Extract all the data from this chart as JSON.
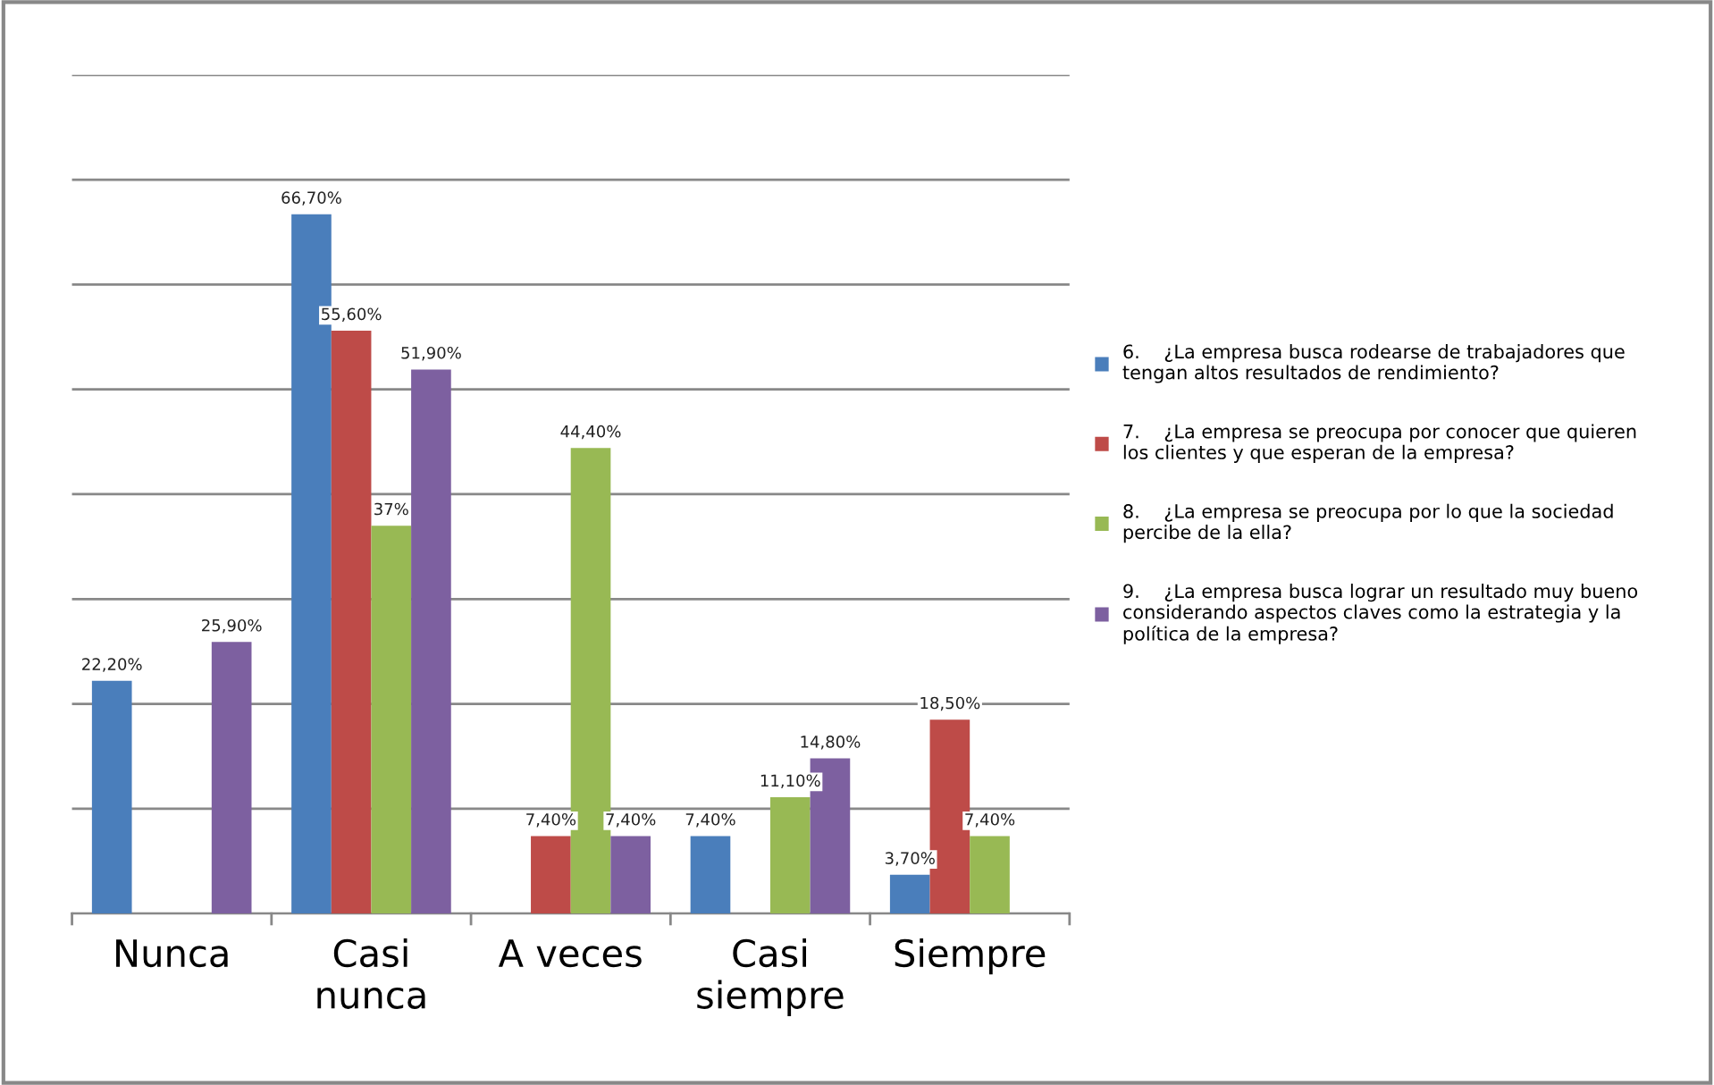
{
  "chart_data": {
    "type": "bar",
    "categories": [
      "Nunca",
      "Casi\nnunca",
      "A veces",
      "Casi\nsiempre",
      "Siempre"
    ],
    "series": [
      {
        "name": "6.    ¿La empresa busca rodearse de trabajadores que\ntengan altos resultados de rendimiento?",
        "color": "#4a7ebb",
        "values": [
          22.2,
          66.7,
          null,
          7.4,
          3.7
        ],
        "value_labels": [
          "22,20%",
          "66,70%",
          null,
          "7,40%",
          "3,70%"
        ]
      },
      {
        "name": "7.    ¿La empresa se preocupa por conocer que quieren\nlos clientes y que esperan de la empresa?",
        "color": "#be4b48",
        "values": [
          null,
          55.6,
          7.4,
          null,
          18.5
        ],
        "value_labels": [
          null,
          "55,60%",
          "7,40%",
          null,
          "18,50%"
        ]
      },
      {
        "name": "8.    ¿La empresa se preocupa por lo que la sociedad\npercibe de la ella?",
        "color": "#98b954",
        "values": [
          null,
          37,
          44.4,
          11.1,
          7.4
        ],
        "value_labels": [
          null,
          "37%",
          "44,40%",
          "11,10%",
          "7,40%"
        ]
      },
      {
        "name": "9.    ¿La empresa busca lograr un resultado muy bueno\nconsiderando aspectos claves como la estrategia y la\npolítica de la empresa?",
        "color": "#7d60a0",
        "values": [
          25.9,
          51.9,
          7.4,
          14.8,
          null
        ],
        "value_labels": [
          "25,90%",
          "51,90%",
          "7,40%",
          "14,80%",
          null
        ]
      }
    ],
    "ylim": [
      0,
      80
    ],
    "yticks": [
      {
        "value": 0,
        "label": null
      },
      {
        "value": 10,
        "label": null
      },
      {
        "value": 20,
        "label": null
      },
      {
        "value": 30,
        "label": null
      },
      {
        "value": 40,
        "label": null
      },
      {
        "value": 50,
        "label": null
      },
      {
        "value": 60,
        "label": null
      },
      {
        "value": 70,
        "label": null
      },
      {
        "value": 80,
        "label": null
      }
    ],
    "grid": "y",
    "legend": "right",
    "tick_labels": "x"
  }
}
